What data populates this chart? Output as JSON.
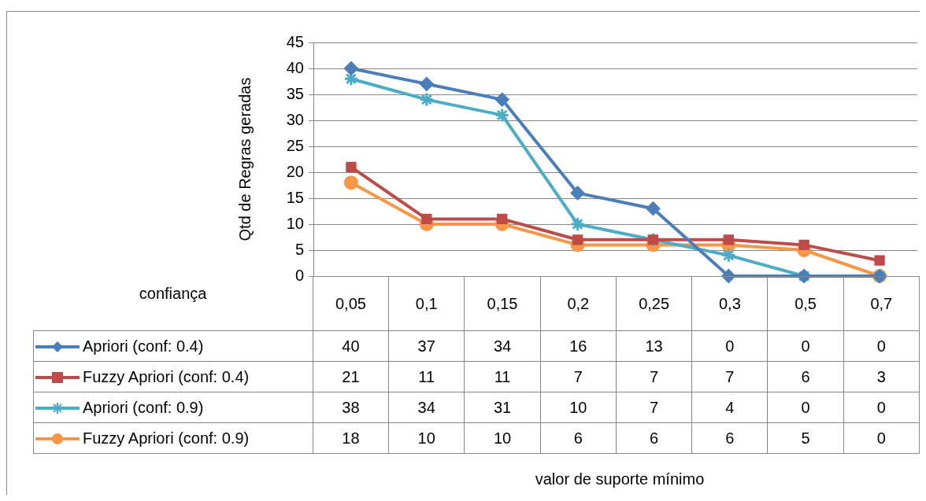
{
  "chart_data": {
    "type": "line",
    "ylabel": "Qtd de Regras geradas",
    "annotations": [
      "confiança",
      "valor de suporte mínimo"
    ],
    "categories": [
      "0,05",
      "0,1",
      "0,15",
      "0,2",
      "0,25",
      "0,3",
      "0,5",
      "0,7"
    ],
    "series": [
      {
        "name": "Apriori (conf: 0.4)",
        "color": "#4a7ebb",
        "marker": "diamond",
        "values": [
          40,
          37,
          34,
          16,
          13,
          0,
          0,
          0
        ]
      },
      {
        "name": "Fuzzy Apriori (conf: 0.4)",
        "color": "#be4b48",
        "marker": "square",
        "values": [
          21,
          11,
          11,
          7,
          7,
          7,
          6,
          3
        ]
      },
      {
        "name": "Apriori (conf: 0.9)",
        "color": "#4bacc6",
        "marker": "cross",
        "values": [
          38,
          34,
          31,
          10,
          7,
          4,
          0,
          0
        ]
      },
      {
        "name": "Fuzzy Apriori (conf: 0.9)",
        "color": "#f79646",
        "marker": "circle",
        "values": [
          18,
          10,
          10,
          6,
          6,
          6,
          5,
          0
        ]
      }
    ],
    "ylim": [
      0,
      45
    ],
    "yticks": [
      0,
      5,
      10,
      15,
      20,
      25,
      30,
      35,
      40,
      45
    ],
    "grid": "y",
    "legend": "bottom",
    "data_labels": true,
    "line_style": "solid"
  }
}
